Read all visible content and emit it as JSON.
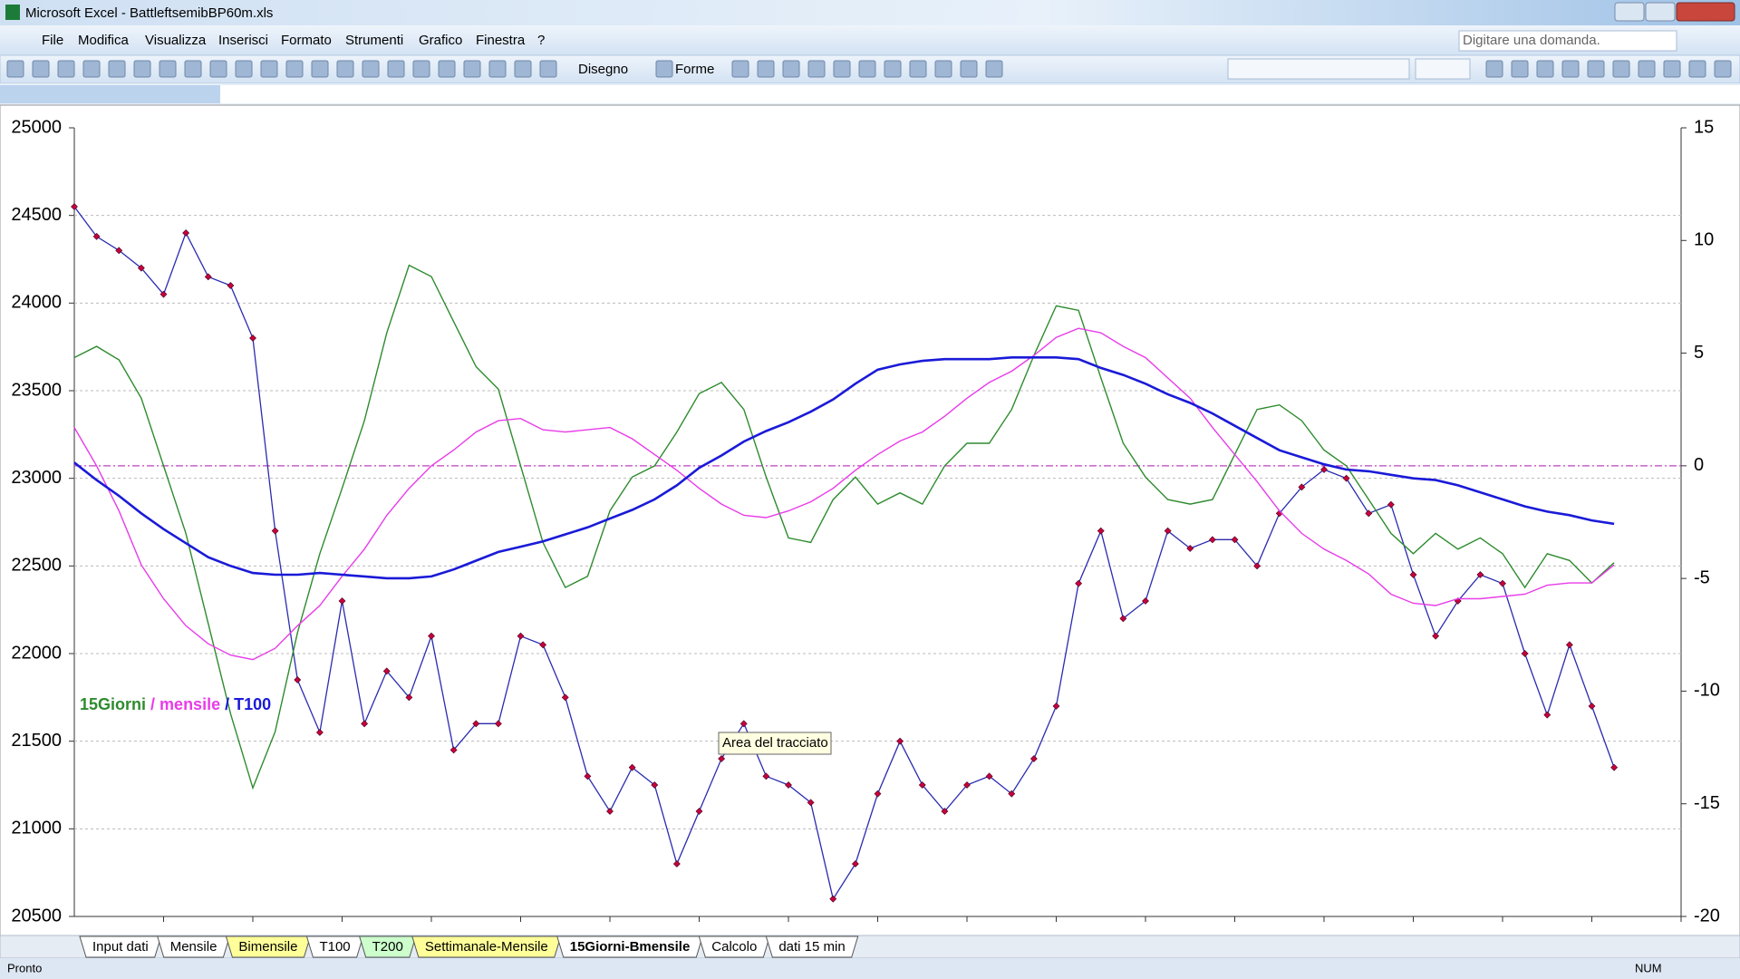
{
  "window": {
    "title": "Microsoft Excel - BattleftsemibBP60m.xls",
    "search_placeholder": "Digitare una domanda."
  },
  "menu": [
    "File",
    "Modifica",
    "Visualizza",
    "Inserisci",
    "Formato",
    "Strumenti",
    "Grafico",
    "Finestra",
    "?"
  ],
  "toolbar": {
    "drawing": "Disegno",
    "shapes": "Forme"
  },
  "chart_data": {
    "type": "line",
    "xlim": [
      0,
      72
    ],
    "ylim": [
      20500,
      25000
    ],
    "yticks": [
      20500,
      21000,
      21500,
      22000,
      22500,
      23000,
      23500,
      24000,
      24500,
      25000
    ],
    "y2lim": [
      -20,
      15
    ],
    "y2ticks": [
      -20,
      -15,
      -10,
      -5,
      0,
      5,
      10,
      15
    ],
    "grid": true,
    "reference_line": {
      "axis": "y2",
      "value": 0,
      "color": "#c040c0"
    },
    "legend_separator": "/",
    "series": [
      {
        "color": "#2b2bb0",
        "marker_color": "#c8003c",
        "markers": true,
        "values": [
          24550,
          24380,
          24300,
          24200,
          24050,
          24400,
          24150,
          24100,
          23800,
          22700,
          21850,
          21550,
          22300,
          21600,
          21900,
          21750,
          22100,
          21450,
          21600,
          21600,
          22100,
          22050,
          21750,
          21300,
          21100,
          21350,
          21250,
          20800,
          21100,
          21400,
          21600,
          21300,
          21250,
          21150,
          20600,
          20800,
          21200,
          21500,
          21250,
          21100,
          21250,
          21300,
          21200,
          21400,
          21700,
          22400,
          22700,
          22200,
          22300,
          22700,
          22600,
          22650,
          22650,
          22500,
          22800,
          22950,
          23050,
          23000,
          22800,
          22850,
          22450,
          22100,
          22300,
          22450,
          22400,
          22000,
          21650,
          22050,
          21700,
          21350
        ]
      },
      {
        "name": "15Giorni",
        "color": "#2e8b2e",
        "axis": "y2",
        "values": [
          4.8,
          5.3,
          4.7,
          3.0,
          0,
          -3,
          -7,
          -11,
          -14.3,
          -11.8,
          -7.4,
          -3.9,
          -1,
          2,
          5.9,
          8.9,
          8.4,
          6.4,
          4.4,
          3.4,
          0,
          -3.4,
          -5.4,
          -4.9,
          -2,
          -0.5,
          0,
          1.5,
          3.2,
          3.7,
          2.5,
          -0.5,
          -3.2,
          -3.4,
          -1.5,
          -0.5,
          -1.7,
          -1.2,
          -1.7,
          0,
          1,
          1,
          2.5,
          4.9,
          7.1,
          6.9,
          3.9,
          1,
          -0.5,
          -1.5,
          -1.7,
          -1.5,
          0.5,
          2.5,
          2.7,
          2,
          0.7,
          0,
          -1.5,
          -3,
          -3.9,
          -3,
          -3.7,
          -3.2,
          -3.9,
          -5.4,
          -3.9,
          -4.2,
          -5.2,
          -4.3
        ]
      },
      {
        "name": "mensile",
        "color": "#e83ce8",
        "axis": "y2",
        "values": [
          1.7,
          0,
          -2,
          -4.4,
          -5.9,
          -7.1,
          -7.9,
          -8.4,
          -8.6,
          -8.1,
          -7.1,
          -6.2,
          -4.9,
          -3.7,
          -2.2,
          -1,
          0,
          0.7,
          1.5,
          2,
          2.1,
          1.6,
          1.5,
          1.6,
          1.7,
          1.2,
          0.5,
          -0.2,
          -1,
          -1.7,
          -2.2,
          -2.3,
          -2,
          -1.6,
          -1,
          -0.2,
          0.5,
          1.1,
          1.5,
          2.2,
          3.0,
          3.7,
          4.2,
          4.9,
          5.7,
          6.1,
          5.9,
          5.3,
          4.8,
          3.9,
          3.0,
          1.7,
          0.5,
          -0.7,
          -2,
          -3,
          -3.7,
          -4.2,
          -4.8,
          -5.7,
          -6.1,
          -6.2,
          -5.9,
          -5.9,
          -5.8,
          -5.7,
          -5.3,
          -5.2,
          -5.2,
          -4.4
        ]
      },
      {
        "name": "T100",
        "color": "#1a1ad8",
        "values": [
          23090,
          22990,
          22900,
          22800,
          22710,
          22630,
          22550,
          22500,
          22460,
          22450,
          22450,
          22460,
          22450,
          22440,
          22430,
          22430,
          22440,
          22480,
          22530,
          22580,
          22610,
          22640,
          22680,
          22720,
          22770,
          22820,
          22880,
          22960,
          23060,
          23130,
          23210,
          23270,
          23320,
          23380,
          23450,
          23540,
          23620,
          23650,
          23670,
          23680,
          23680,
          23680,
          23690,
          23690,
          23690,
          23680,
          23630,
          23590,
          23540,
          23480,
          23430,
          23370,
          23300,
          23230,
          23160,
          23120,
          23080,
          23050,
          23040,
          23020,
          23000,
          22990,
          22960,
          22920,
          22880,
          22840,
          22810,
          22790,
          22760,
          22740
        ]
      }
    ]
  },
  "tooltip": "Area del tracciato",
  "sheet_tabs": [
    {
      "label": "Input dati",
      "color": "#ffffff"
    },
    {
      "label": "Mensile",
      "color": "#ffffff"
    },
    {
      "label": "Bimensile",
      "color": "#ffff99"
    },
    {
      "label": "T100",
      "color": "#ffffff"
    },
    {
      "label": "T200",
      "color": "#ccffcc"
    },
    {
      "label": "Settimanale-Mensile",
      "color": "#ffff99"
    },
    {
      "label": "15Giorni-Bmensile",
      "color": "#ffffff",
      "active": true
    },
    {
      "label": "Calcolo",
      "color": "#ffffff"
    },
    {
      "label": "dati 15 min",
      "color": "#ffffff"
    }
  ],
  "status": {
    "ready": "Pronto",
    "mode": "NUM"
  }
}
